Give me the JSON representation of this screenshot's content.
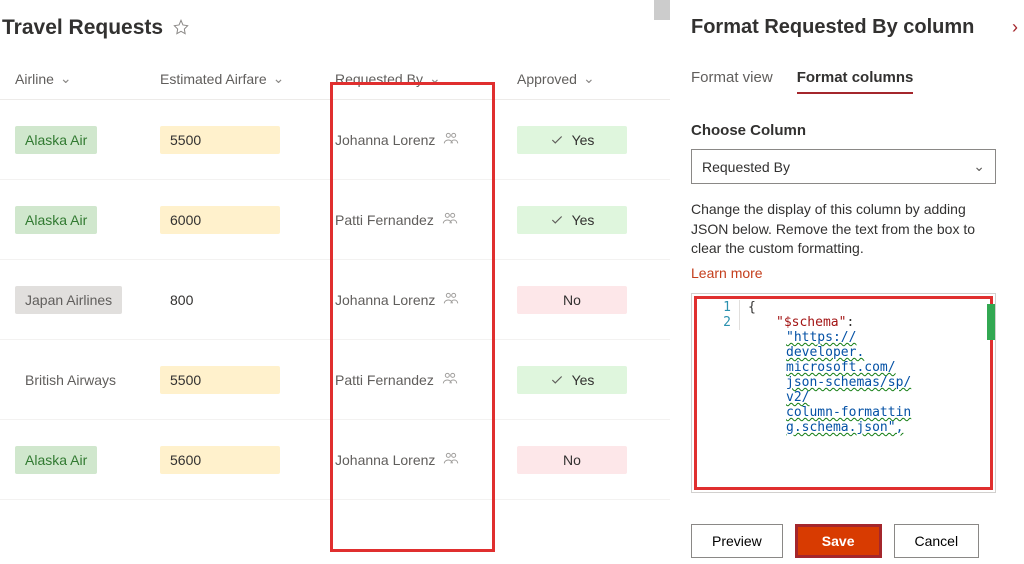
{
  "page": {
    "title": "Travel Requests"
  },
  "columns": {
    "airline": "Airline",
    "airfare": "Estimated Airfare",
    "requested": "Requested By",
    "approved": "Approved"
  },
  "colors": {
    "green_bg": "#d0e7cd",
    "green_text": "#317a31",
    "yellow_bg": "#fff1cc",
    "grey_bg": "#e1dfdd",
    "approved_yes_bg": "#dff6dd",
    "approved_no_bg": "#fde7e9",
    "yes_text": "#323130",
    "no_text": "#605e5c"
  },
  "rows": [
    {
      "airline": "Alaska Air",
      "airline_bg": "#d0e7cd",
      "airline_color": "#317a31",
      "airfare": "5500",
      "airfare_bg": "#fff1cc",
      "requested": "Johanna Lorenz",
      "approved": "Yes",
      "approved_bg": "#dff6dd",
      "check": true
    },
    {
      "airline": "Alaska Air",
      "airline_bg": "#d0e7cd",
      "airline_color": "#317a31",
      "airfare": "6000",
      "airfare_bg": "#fff1cc",
      "requested": "Patti Fernandez",
      "approved": "Yes",
      "approved_bg": "#dff6dd",
      "check": true
    },
    {
      "airline": "Japan Airlines",
      "airline_bg": "#e1dfdd",
      "airline_color": "#605e5c",
      "airfare": "800",
      "airfare_bg": "#ffffff",
      "requested": "Johanna Lorenz",
      "approved": "No",
      "approved_bg": "#fde7e9",
      "check": false
    },
    {
      "airline": "British Airways",
      "airline_bg": "#ffffff",
      "airline_color": "#605e5c",
      "airfare": "5500",
      "airfare_bg": "#fff1cc",
      "requested": "Patti Fernandez",
      "approved": "Yes",
      "approved_bg": "#dff6dd",
      "check": true
    },
    {
      "airline": "Alaska Air",
      "airline_bg": "#d0e7cd",
      "airline_color": "#317a31",
      "airfare": "5600",
      "airfare_bg": "#fff1cc",
      "requested": "Johanna Lorenz",
      "approved": "No",
      "approved_bg": "#fde7e9",
      "check": false
    }
  ],
  "panel": {
    "title": "Format Requested By column",
    "tabs": {
      "view": "Format view",
      "columns": "Format columns"
    },
    "choose_label": "Choose Column",
    "dropdown_value": "Requested By",
    "help_text": "Change the display of this column by adding JSON below. Remove the text from the box to clear the custom formatting.",
    "learn_more": "Learn more",
    "code": {
      "line1": "1",
      "line2": "2",
      "brace": "{",
      "schema_key": "\"$schema\"",
      "colon": ":",
      "url_1": "\"https://",
      "url_2": "developer.",
      "url_3": "microsoft.com/",
      "url_4": "json-schemas/sp/",
      "url_5": "v2/",
      "url_6": "column-formattin",
      "url_7": "g.schema.json\","
    },
    "buttons": {
      "preview": "Preview",
      "save": "Save",
      "cancel": "Cancel"
    }
  }
}
